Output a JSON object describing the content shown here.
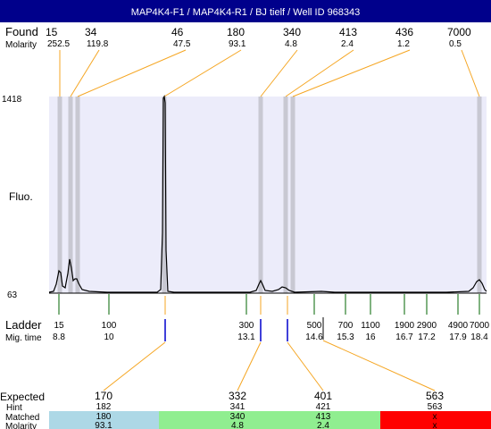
{
  "title": "MAP4K4-F1 / MAP4K4-R1 / BJ tielf / Well ID 968343",
  "found_label": "Found",
  "molarity_label": "Molarity",
  "fluo_label": "Fluo.",
  "ladder_label": "Ladder",
  "migtime_label": "Mig. time",
  "expected_label": "Expected",
  "hint_label": "Hint",
  "matched_label": "Matched",
  "molarity_label_bottom": "Molarity",
  "colors": {
    "title_bg": "#00008b",
    "plot_bg": "#ececfa",
    "band": "#c8c8d2",
    "orange": "#f5a623",
    "ladder_tick": "#006400",
    "mig_marker": "#0000cc",
    "trace": "#000000",
    "row_blue": "#add8e6",
    "row_green": "#90ee90",
    "row_red": "#ff0000"
  },
  "chart_data": {
    "type": "line",
    "title": "MAP4K4-F1 / MAP4K4-R1 / BJ tielf / Well ID 968343",
    "ylabel": "Fluo.",
    "ylim": [
      63,
      1418
    ],
    "y_tick_labels": [
      "1418",
      "63"
    ],
    "found": [
      {
        "size": "15",
        "molarity": "252.5"
      },
      {
        "size": "34",
        "molarity": "119.8"
      },
      {
        "size": "46",
        "molarity": "47.5"
      },
      {
        "size": "180",
        "molarity": "93.1"
      },
      {
        "size": "340",
        "molarity": "4.8"
      },
      {
        "size": "413",
        "molarity": "2.4"
      },
      {
        "size": "436",
        "molarity": "1.2"
      },
      {
        "size": "7000",
        "molarity": "0.5"
      }
    ],
    "ladder": [
      {
        "size": "15",
        "mig_time": "8.8"
      },
      {
        "size": "100",
        "mig_time": "10"
      },
      {
        "size": "300",
        "mig_time": "13.1"
      },
      {
        "size": "500",
        "mig_time": "14.6"
      },
      {
        "size": "700",
        "mig_time": "15.3"
      },
      {
        "size": "1100",
        "mig_time": "16"
      },
      {
        "size": "1900",
        "mig_time": "16.7"
      },
      {
        "size": "2900",
        "mig_time": "17.2"
      },
      {
        "size": "4900",
        "mig_time": "17.9"
      },
      {
        "size": "7000",
        "mig_time": "18.4"
      }
    ],
    "expected": [
      {
        "expected": "170",
        "hint": "182",
        "matched": "180",
        "molarity": "93.1",
        "status": "blue"
      },
      {
        "expected": "332",
        "hint": "341",
        "matched": "340",
        "molarity": "4.8",
        "status": "green"
      },
      {
        "expected": "401",
        "hint": "421",
        "matched": "413",
        "molarity": "2.4",
        "status": "green"
      },
      {
        "expected": "563",
        "hint": "563",
        "matched": "x",
        "molarity": "x",
        "status": "red"
      }
    ]
  }
}
